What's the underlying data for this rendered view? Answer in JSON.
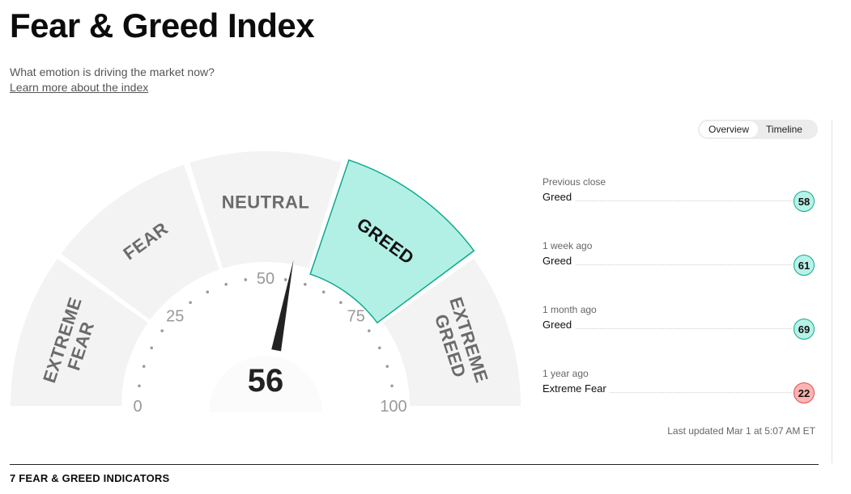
{
  "header": {
    "title": "Fear & Greed Index",
    "subtitle": "What emotion is driving the market now?",
    "learn_more": "Learn more about the index"
  },
  "view_toggle": {
    "options": [
      "Overview",
      "Timeline"
    ],
    "selected": "Overview"
  },
  "gauge": {
    "score": 56,
    "active_segment": "GREED",
    "segments": [
      {
        "label": "EXTREME FEAR",
        "lines": [
          "EXTREME",
          "FEAR"
        ]
      },
      {
        "label": "FEAR",
        "lines": [
          "FEAR"
        ]
      },
      {
        "label": "NEUTRAL",
        "lines": [
          "NEUTRAL"
        ]
      },
      {
        "label": "GREED",
        "lines": [
          "GREED"
        ]
      },
      {
        "label": "EXTREME GREED",
        "lines": [
          "EXTREME",
          "GREED"
        ]
      }
    ],
    "tick_labels": [
      "0",
      "25",
      "50",
      "75",
      "100"
    ],
    "colors": {
      "active_fill": "#b2f0e6",
      "active_stroke": "#13a88a",
      "inactive_fill": "#f3f3f3",
      "needle": "#222222"
    }
  },
  "history": [
    {
      "label": "Previous close",
      "value": "Greed",
      "score": "58",
      "rating": "greed"
    },
    {
      "label": "1 week ago",
      "value": "Greed",
      "score": "61",
      "rating": "greed"
    },
    {
      "label": "1 month ago",
      "value": "Greed",
      "score": "69",
      "rating": "greed"
    },
    {
      "label": "1 year ago",
      "value": "Extreme Fear",
      "score": "22",
      "rating": "extreme-fear"
    }
  ],
  "last_updated": "Last updated Mar 1 at 5:07 AM ET",
  "indicators_section": {
    "title": "7 FEAR & GREED INDICATORS"
  }
}
